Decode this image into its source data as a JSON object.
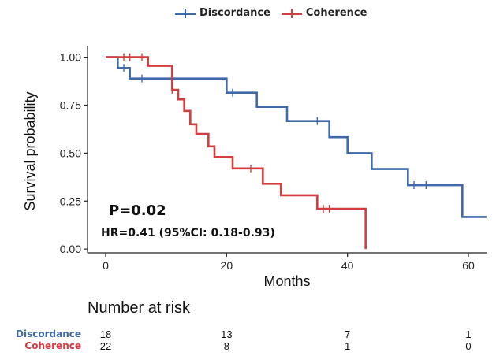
{
  "legend": {
    "items": [
      {
        "label": "Discordance",
        "color": "#3f69ab"
      },
      {
        "label": "Coherence",
        "color": "#d43c3f"
      }
    ]
  },
  "chart_data": {
    "type": "line",
    "subtype": "kaplan-meier",
    "xlabel": "Months",
    "ylabel": "Survival probability",
    "xlim": [
      -3,
      63
    ],
    "ylim": [
      -0.02,
      1.06
    ],
    "xticks": [
      0,
      20,
      40,
      60
    ],
    "xtick_labels": [
      "0",
      "20",
      "40",
      "60"
    ],
    "yticks": [
      0,
      0.25,
      0.5,
      0.75,
      1.0
    ],
    "ytick_labels": [
      "0.00",
      "0.25",
      "0.50",
      "0.75",
      "1.00"
    ],
    "grid": false,
    "series": [
      {
        "name": "Discordance",
        "color": "#3f69ab",
        "steps": [
          [
            0,
            1.0
          ],
          [
            2,
            0.944
          ],
          [
            4,
            0.889
          ],
          [
            20,
            0.815
          ],
          [
            25,
            0.741
          ],
          [
            30,
            0.667
          ],
          [
            37,
            0.583
          ],
          [
            40,
            0.5
          ],
          [
            44,
            0.417
          ],
          [
            50,
            0.333
          ],
          [
            59,
            0.167
          ],
          [
            63,
            0.167
          ]
        ],
        "censored": [
          [
            3,
            0.944
          ],
          [
            6,
            0.889
          ],
          [
            21,
            0.815
          ],
          [
            35,
            0.667
          ],
          [
            51,
            0.333
          ],
          [
            53,
            0.333
          ]
        ]
      },
      {
        "name": "Coherence",
        "color": "#d43c3f",
        "steps": [
          [
            0,
            1.0
          ],
          [
            7,
            0.955
          ],
          [
            11,
            0.83
          ],
          [
            12,
            0.78
          ],
          [
            13,
            0.72
          ],
          [
            14,
            0.65
          ],
          [
            15,
            0.6
          ],
          [
            17,
            0.535
          ],
          [
            18,
            0.48
          ],
          [
            21,
            0.42
          ],
          [
            26,
            0.34
          ],
          [
            29,
            0.28
          ],
          [
            35,
            0.21
          ],
          [
            43,
            0.0
          ]
        ],
        "censored": [
          [
            3,
            1.0
          ],
          [
            4,
            1.0
          ],
          [
            6,
            1.0
          ],
          [
            11,
            0.83
          ],
          [
            24,
            0.42
          ],
          [
            36,
            0.21
          ],
          [
            37,
            0.21
          ]
        ]
      }
    ],
    "annotations": {
      "p_value": "P=0.02",
      "hr": "HR=0.41 (95%CI:  0.18-0.93)"
    }
  },
  "risk_table": {
    "title": "Number at risk",
    "times": [
      0,
      20,
      40,
      60
    ],
    "rows": [
      {
        "label": "Discordance",
        "color": "#3f69ab",
        "values": [
          "18",
          "13",
          "7",
          "1"
        ]
      },
      {
        "label": "Coherence",
        "color": "#d43c3f",
        "values": [
          "22",
          "8",
          "1",
          "0"
        ]
      }
    ]
  }
}
